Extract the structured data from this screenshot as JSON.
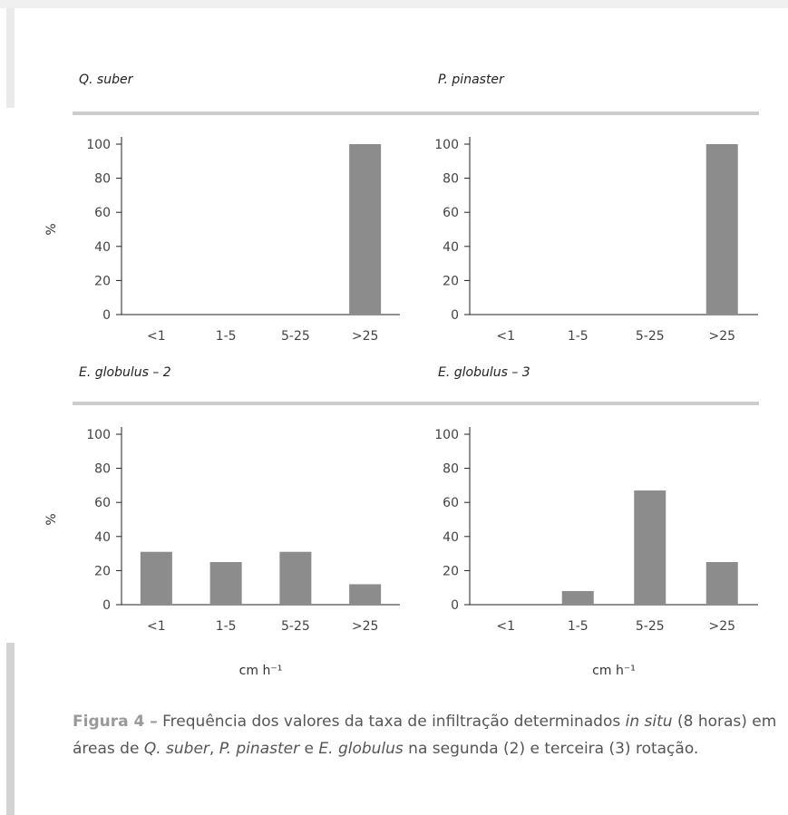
{
  "chart_data": [
    {
      "type": "bar",
      "title": "Q. suber",
      "categories": [
        "<1",
        "1-5",
        "5-25",
        ">25"
      ],
      "values": [
        0,
        0,
        0,
        100
      ],
      "ylabel": "%",
      "xlabel": "",
      "ylim": [
        0,
        100
      ],
      "yticks": [
        "0",
        "20",
        "40",
        "60",
        "80",
        "100"
      ],
      "bar_color": "#8c8c8c",
      "grid": false
    },
    {
      "type": "bar",
      "title": "P. pinaster",
      "categories": [
        "<1",
        "1-5",
        "5-25",
        ">25"
      ],
      "values": [
        0,
        0,
        0,
        100
      ],
      "ylabel": "",
      "xlabel": "",
      "ylim": [
        0,
        100
      ],
      "yticks": [
        "0",
        "20",
        "40",
        "60",
        "80",
        "100"
      ],
      "bar_color": "#8c8c8c",
      "grid": false
    },
    {
      "type": "bar",
      "title": "E. globulus – 2",
      "categories": [
        "<1",
        "1-5",
        "5-25",
        ">25"
      ],
      "values": [
        31,
        25,
        31,
        12
      ],
      "ylabel": "%",
      "xlabel": "cm h⁻¹",
      "ylim": [
        0,
        100
      ],
      "yticks": [
        "0",
        "20",
        "40",
        "60",
        "80",
        "100"
      ],
      "bar_color": "#8c8c8c",
      "grid": false
    },
    {
      "type": "bar",
      "title": "E. globulus – 3",
      "categories": [
        "<1",
        "1-5",
        "5-25",
        ">25"
      ],
      "values": [
        0,
        8,
        67,
        25
      ],
      "ylabel": "",
      "xlabel": "cm h⁻¹",
      "ylim": [
        0,
        100
      ],
      "yticks": [
        "0",
        "20",
        "40",
        "60",
        "80",
        "100"
      ],
      "bar_color": "#8c8c8c",
      "grid": false
    }
  ],
  "caption": {
    "label": "Figura 4 –",
    "text_1": " Frequência dos valores da taxa de infiltração determinados ",
    "in_situ": "in situ",
    "text_2": " (8 horas) em áreas de ",
    "species_1": "Q. suber",
    "sep_1": ", ",
    "species_2": "P. pinaster",
    "sep_2": " e ",
    "species_3": "E. globulus",
    "text_3": " na segunda (2) e terceira (3) rotação."
  }
}
